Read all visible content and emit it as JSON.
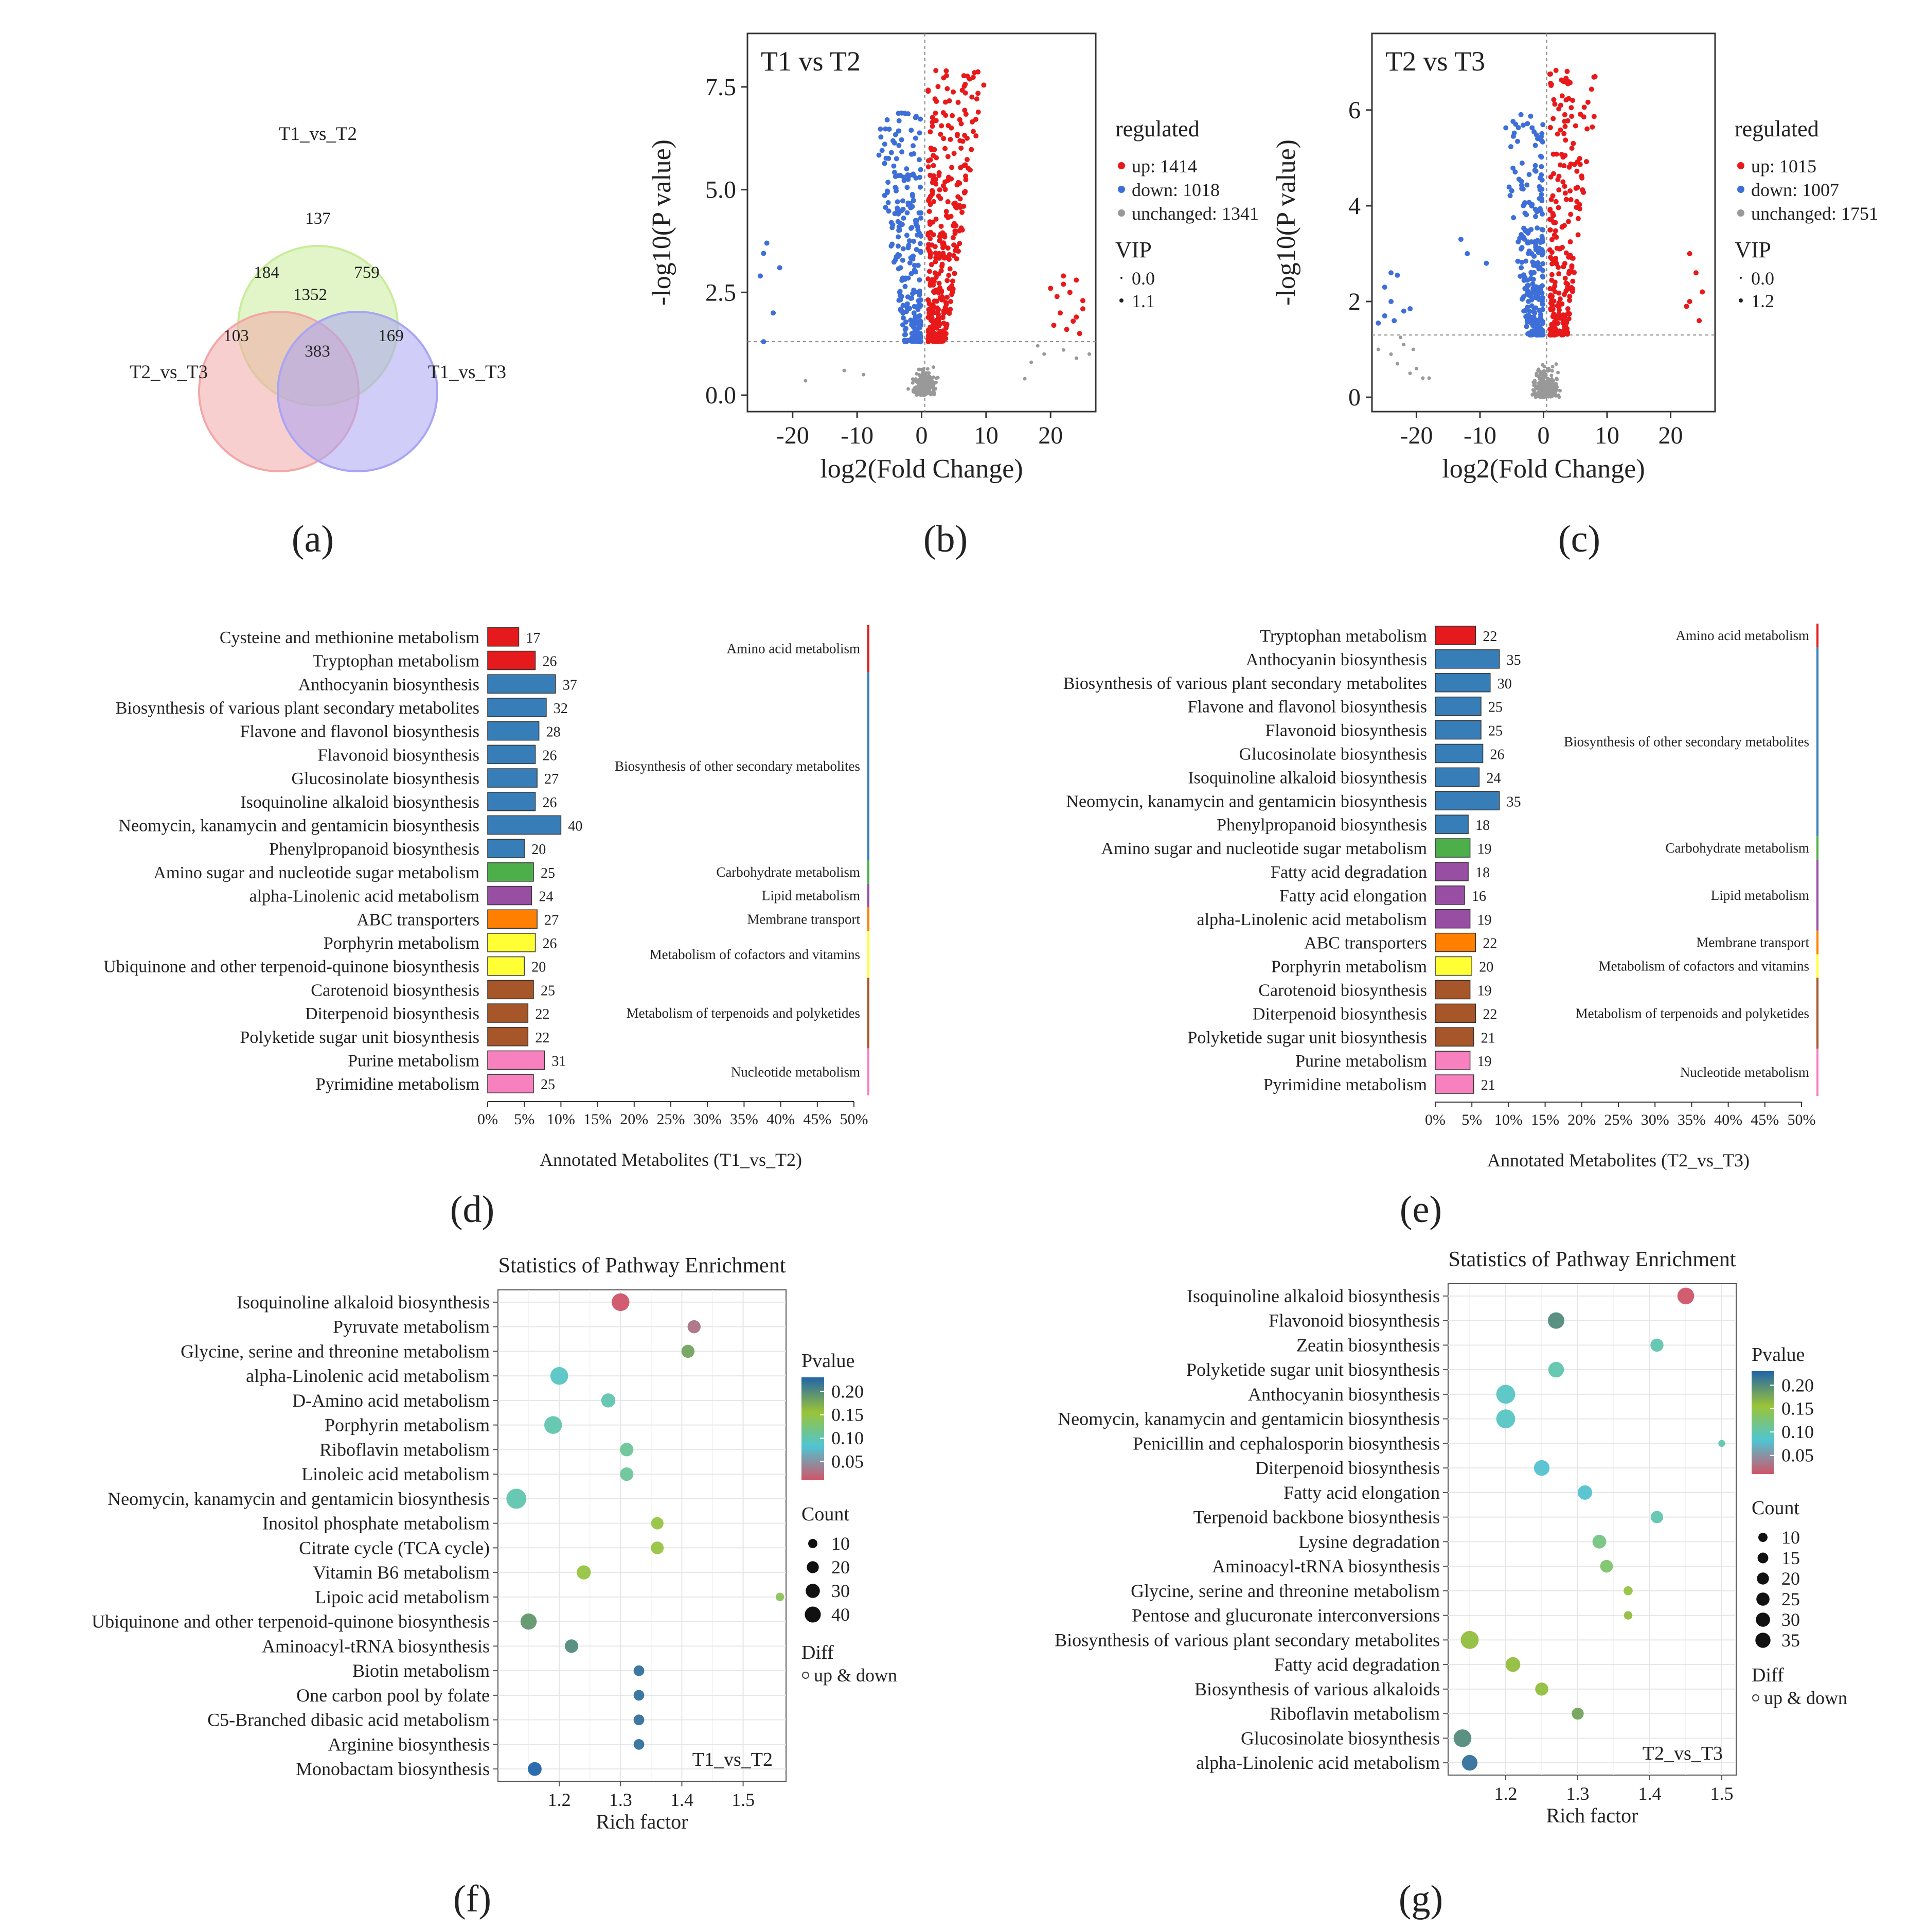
{
  "panel_labels": [
    "(a)",
    "(b)",
    "(c)",
    "(d)",
    "(e)",
    "(f)",
    "(g)"
  ],
  "chart_data": [
    {
      "panel": "(a)",
      "type": "venn",
      "sets": [
        {
          "name": "T1_vs_T2",
          "color": "#c9ec9a"
        },
        {
          "name": "T2_vs_T3",
          "color": "#f2a7a7"
        },
        {
          "name": "T1_vs_T3",
          "color": "#a9a4f3"
        }
      ],
      "regions": {
        "T1_vs_T2_only": 137,
        "T2_vs_T3_only": 103,
        "T1_vs_T3_only": 169,
        "T1_T2_and_T2_T3": 184,
        "T1_T2_and_T1_T3": 759,
        "T2_T3_and_T1_T3": 383,
        "all_three": 1352
      }
    },
    {
      "panel": "(b)",
      "type": "scatter",
      "title": "T1 vs T2",
      "xlabel": "log2(Fold Change)",
      "ylabel": "-log10(P value)",
      "xlim": [
        -27,
        27
      ],
      "ylim": [
        -0.4,
        8.8
      ],
      "xticks": [
        -20,
        -10,
        0,
        10,
        20
      ],
      "yticks": [
        "0.0",
        "2.5",
        "5.0",
        "7.5"
      ],
      "threshold_y": 1.3,
      "legend": {
        "title": "regulated",
        "items": [
          {
            "label": "up: 1414",
            "color": "#e8191a"
          },
          {
            "label": "down: 1018",
            "color": "#3e6fd8"
          },
          {
            "label": "unchanged: 1341",
            "color": "#999999"
          }
        ],
        "vip_title": "VIP",
        "vip_items": [
          "0.0",
          "1.1"
        ]
      },
      "counts": {
        "up": 1414,
        "down": 1018,
        "unchanged": 1341
      },
      "seed": 11,
      "side_points": {
        "left_down": [
          [
            -24,
            3.7
          ],
          [
            -24.5,
            3.45
          ],
          [
            -22,
            3.1
          ],
          [
            -25,
            2.9
          ],
          [
            -23,
            2.0
          ],
          [
            -24.5,
            1.3
          ]
        ],
        "left_gray": [
          [
            -18,
            0.35
          ],
          [
            -12,
            0.6
          ],
          [
            -9,
            0.5
          ]
        ],
        "right_up": [
          [
            20,
            2.6
          ],
          [
            21,
            2.4
          ],
          [
            22,
            2.7
          ],
          [
            23,
            2.5
          ],
          [
            24,
            2.8
          ],
          [
            25,
            2.3
          ],
          [
            21.5,
            2.0
          ],
          [
            23.5,
            1.8
          ],
          [
            24.5,
            1.5
          ],
          [
            20.5,
            1.7
          ],
          [
            22.5,
            1.6
          ],
          [
            25,
            2.1
          ],
          [
            22,
            2.9
          ],
          [
            24,
            1.9
          ]
        ],
        "right_gray": [
          [
            17,
            0.8
          ],
          [
            18,
            1.2
          ],
          [
            19,
            1.0
          ],
          [
            22,
            1.1
          ],
          [
            24,
            0.9
          ],
          [
            26,
            1.0
          ],
          [
            16,
            0.4
          ]
        ]
      }
    },
    {
      "panel": "(c)",
      "type": "scatter",
      "title": "T2 vs T3",
      "xlabel": "log2(Fold Change)",
      "ylabel": "-log10(P value)",
      "xlim": [
        -27,
        27
      ],
      "ylim": [
        -0.3,
        7.6
      ],
      "xticks": [
        -20,
        -10,
        0,
        10,
        20
      ],
      "yticks": [
        "0",
        "2",
        "4",
        "6"
      ],
      "threshold_y": 1.3,
      "legend": {
        "title": "regulated",
        "items": [
          {
            "label": "up: 1015",
            "color": "#e8191a"
          },
          {
            "label": "down: 1007",
            "color": "#3e6fd8"
          },
          {
            "label": "unchanged: 1751",
            "color": "#999999"
          }
        ],
        "vip_title": "VIP",
        "vip_items": [
          "0.0",
          "1.2"
        ]
      },
      "counts": {
        "up": 1015,
        "down": 1007,
        "unchanged": 1751
      },
      "seed": 23,
      "side_points": {
        "left_down": [
          [
            -24,
            2.6
          ],
          [
            -23,
            2.55
          ],
          [
            -25,
            2.3
          ],
          [
            -24,
            2.0
          ],
          [
            -22,
            1.8
          ],
          [
            -25,
            1.7
          ],
          [
            -23.5,
            1.6
          ],
          [
            -21,
            1.85
          ],
          [
            -26,
            1.55
          ],
          [
            -13,
            3.3
          ],
          [
            -9,
            2.8
          ],
          [
            -12,
            3.0
          ]
        ],
        "left_gray": [
          [
            -26,
            1.0
          ],
          [
            -24,
            0.9
          ],
          [
            -23,
            0.7
          ],
          [
            -22,
            1.1
          ],
          [
            -21,
            0.5
          ],
          [
            -20,
            0.6
          ],
          [
            -19,
            0.4
          ],
          [
            -18,
            0.4
          ],
          [
            -22.5,
            1.25
          ],
          [
            -20.5,
            1.0
          ]
        ],
        "right_up": [
          [
            23,
            3.0
          ],
          [
            24,
            2.6
          ],
          [
            25,
            2.2
          ],
          [
            23,
            2.0
          ],
          [
            24.5,
            1.6
          ],
          [
            22.5,
            1.9
          ]
        ],
        "right_gray": []
      }
    },
    {
      "panel": "(d)",
      "type": "bar",
      "orientation": "horizontal",
      "xlabel": "Annotated Metabolites (T1_vs_T2)",
      "xticks": [
        "0%",
        "5%",
        "10%",
        "15%",
        "20%",
        "25%",
        "30%",
        "35%",
        "40%",
        "45%",
        "50%"
      ],
      "xlim": [
        0,
        50
      ],
      "categories": [
        "Cysteine and methionine metabolism",
        "Tryptophan metabolism",
        "Anthocyanin biosynthesis",
        "Biosynthesis of various plant secondary metabolites",
        "Flavone and flavonol biosynthesis",
        "Flavonoid biosynthesis",
        "Glucosinolate biosynthesis",
        "Isoquinoline alkaloid biosynthesis",
        "Neomycin, kanamycin and gentamicin biosynthesis",
        "Phenylpropanoid biosynthesis",
        "Amino sugar and nucleotide sugar metabolism",
        "alpha-Linolenic acid metabolism",
        "ABC transporters",
        "Porphyrin metabolism",
        "Ubiquinone and other terpenoid-quinone biosynthesis",
        "Carotenoid biosynthesis",
        "Diterpenoid biosynthesis",
        "Polyketide sugar unit biosynthesis",
        "Purine metabolism",
        "Pyrimidine metabolism"
      ],
      "values": [
        17,
        26,
        37,
        32,
        28,
        26,
        27,
        26,
        40,
        20,
        25,
        24,
        27,
        26,
        20,
        25,
        22,
        22,
        31,
        25
      ],
      "group_index": [
        0,
        0,
        1,
        1,
        1,
        1,
        1,
        1,
        1,
        1,
        2,
        3,
        4,
        5,
        5,
        6,
        6,
        6,
        7,
        7
      ],
      "groups": [
        {
          "name": "Amino acid metabolism",
          "color": "#e41a1c"
        },
        {
          "name": "Biosynthesis of other secondary metabolites",
          "color": "#377eb8"
        },
        {
          "name": "Carbohydrate metabolism",
          "color": "#4daf4a"
        },
        {
          "name": "Lipid metabolism",
          "color": "#984ea3"
        },
        {
          "name": "Membrane transport",
          "color": "#ff7f00"
        },
        {
          "name": "Metabolism of cofactors and vitamins",
          "color": "#ffff33"
        },
        {
          "name": "Metabolism of terpenoids and polyketides",
          "color": "#a65628"
        },
        {
          "name": "Nucleotide metabolism",
          "color": "#f781bf"
        }
      ]
    },
    {
      "panel": "(e)",
      "type": "bar",
      "orientation": "horizontal",
      "xlabel": "Annotated Metabolites (T2_vs_T3)",
      "xticks": [
        "0%",
        "5%",
        "10%",
        "15%",
        "20%",
        "25%",
        "30%",
        "35%",
        "40%",
        "45%",
        "50%"
      ],
      "xlim": [
        0,
        50
      ],
      "categories": [
        "Tryptophan metabolism",
        "Anthocyanin biosynthesis",
        "Biosynthesis of various plant secondary metabolites",
        "Flavone and flavonol biosynthesis",
        "Flavonoid biosynthesis",
        "Glucosinolate biosynthesis",
        "Isoquinoline alkaloid biosynthesis",
        "Neomycin, kanamycin and gentamicin biosynthesis",
        "Phenylpropanoid biosynthesis",
        "Amino sugar and nucleotide sugar metabolism",
        "Fatty acid degradation",
        "Fatty acid elongation",
        "alpha-Linolenic acid metabolism",
        "ABC transporters",
        "Porphyrin metabolism",
        "Carotenoid biosynthesis",
        "Diterpenoid biosynthesis",
        "Polyketide sugar unit biosynthesis",
        "Purine metabolism",
        "Pyrimidine metabolism"
      ],
      "values": [
        22,
        35,
        30,
        25,
        25,
        26,
        24,
        35,
        18,
        19,
        18,
        16,
        19,
        22,
        20,
        19,
        22,
        21,
        19,
        21
      ],
      "group_index": [
        0,
        1,
        1,
        1,
        1,
        1,
        1,
        1,
        1,
        2,
        3,
        3,
        3,
        4,
        5,
        6,
        6,
        6,
        7,
        7
      ],
      "groups": [
        {
          "name": "Amino acid metabolism",
          "color": "#e41a1c"
        },
        {
          "name": "Biosynthesis of other secondary metabolites",
          "color": "#377eb8"
        },
        {
          "name": "Carbohydrate metabolism",
          "color": "#4daf4a"
        },
        {
          "name": "Lipid metabolism",
          "color": "#984ea3"
        },
        {
          "name": "Membrane transport",
          "color": "#ff7f00"
        },
        {
          "name": "Metabolism of cofactors and vitamins",
          "color": "#ffff33"
        },
        {
          "name": "Metabolism of terpenoids and polyketides",
          "color": "#a65628"
        },
        {
          "name": "Nucleotide metabolism",
          "color": "#f781bf"
        }
      ]
    },
    {
      "panel": "(f)",
      "type": "scatter",
      "subtype": "bubble",
      "title": "Statistics of Pathway Enrichment",
      "xlabel": "Rich factor",
      "xlim": [
        1.1,
        1.57
      ],
      "xticks": [
        "1.2",
        "1.3",
        "1.4",
        "1.5"
      ],
      "annotation": "T1_vs_T2",
      "legend": {
        "color_title": "Pvalue",
        "color_ticks": [
          "0.20",
          "0.15",
          "0.10",
          "0.05"
        ],
        "color_range": [
          0.01,
          0.23
        ],
        "size_title": "Count",
        "size_values": [
          10,
          20,
          30,
          40
        ],
        "size_labels": [
          "10",
          "20",
          "30",
          "40"
        ],
        "diff_title": "Diff",
        "diff_label": "up & down"
      },
      "categories": [
        "Isoquinoline alkaloid biosynthesis",
        "Pyruvate metabolism",
        "Glycine, serine and threonine metabolism",
        "alpha-Linolenic acid metabolism",
        "D-Amino acid metabolism",
        "Porphyrin metabolism",
        "Riboflavin metabolism",
        "Linoleic acid metabolism",
        "Neomycin, kanamycin and gentamicin biosynthesis",
        "Inositol phosphate metabolism",
        "Citrate cycle (TCA cycle)",
        "Vitamin B6 metabolism",
        "Lipoic acid metabolism",
        "Ubiquinone and other terpenoid-quinone biosynthesis",
        "Aminoacyl-tRNA biosynthesis",
        "Biotin metabolism",
        "One carbon pool by folate",
        "C5-Branched dibasic acid metabolism",
        "Arginine biosynthesis",
        "Monobactam biosynthesis"
      ],
      "x": [
        1.3,
        1.42,
        1.41,
        1.2,
        1.28,
        1.19,
        1.31,
        1.31,
        1.13,
        1.36,
        1.36,
        1.24,
        1.56,
        1.15,
        1.22,
        1.33,
        1.33,
        1.33,
        1.33,
        1.16
      ],
      "pvalue": [
        0.01,
        0.03,
        0.18,
        0.09,
        0.1,
        0.1,
        0.11,
        0.11,
        0.1,
        0.15,
        0.15,
        0.15,
        0.14,
        0.19,
        0.2,
        0.22,
        0.22,
        0.22,
        0.22,
        0.23
      ],
      "count": [
        30,
        14,
        14,
        30,
        17,
        30,
        15,
        15,
        40,
        12,
        13,
        17,
        4,
        24,
        15,
        8,
        8,
        8,
        8,
        16
      ]
    },
    {
      "panel": "(g)",
      "type": "scatter",
      "subtype": "bubble",
      "title": "Statistics of Pathway Enrichment",
      "xlabel": "Rich factor",
      "xlim": [
        1.12,
        1.52
      ],
      "xticks": [
        "1.2",
        "1.3",
        "1.4",
        "1.5"
      ],
      "annotation": "T2_vs_T3",
      "legend": {
        "color_title": "Pvalue",
        "color_ticks": [
          "0.20",
          "0.15",
          "0.10",
          "0.05"
        ],
        "color_range": [
          0.01,
          0.23
        ],
        "size_title": "Count",
        "size_values": [
          10,
          15,
          20,
          25,
          30,
          35
        ],
        "size_labels": [
          "10",
          "15",
          "20",
          "25",
          "30",
          "35"
        ],
        "diff_title": "Diff",
        "diff_label": "up & down"
      },
      "categories": [
        "Isoquinoline alkaloid biosynthesis",
        "Flavonoid biosynthesis",
        "Zeatin biosynthesis",
        "Polyketide sugar unit biosynthesis",
        "Anthocyanin biosynthesis",
        "Neomycin, kanamycin and gentamicin biosynthesis",
        "Penicillin and cephalosporin biosynthesis",
        "Diterpenoid biosynthesis",
        "Fatty acid elongation",
        "Terpenoid backbone biosynthesis",
        "Lysine degradation",
        "Aminoacyl-tRNA biosynthesis",
        "Glycine, serine and threonine metabolism",
        "Pentose and glucuronate interconversions",
        "Biosynthesis of various plant secondary metabolites",
        "Fatty acid degradation",
        "Biosynthesis of various alkaloids",
        "Riboflavin metabolism",
        "Glucosinolate biosynthesis",
        "alpha-Linolenic acid metabolism"
      ],
      "x": [
        1.45,
        1.27,
        1.41,
        1.27,
        1.2,
        1.2,
        1.5,
        1.25,
        1.31,
        1.41,
        1.33,
        1.34,
        1.37,
        1.37,
        1.15,
        1.21,
        1.25,
        1.3,
        1.14,
        1.15
      ],
      "pvalue": [
        0.01,
        0.2,
        0.1,
        0.1,
        0.09,
        0.09,
        0.1,
        0.08,
        0.08,
        0.1,
        0.12,
        0.13,
        0.15,
        0.16,
        0.16,
        0.16,
        0.16,
        0.18,
        0.2,
        0.22
      ],
      "count": [
        26,
        25,
        14,
        22,
        35,
        35,
        2,
        22,
        18,
        12,
        16,
        13,
        5,
        4,
        31,
        19,
        14,
        11,
        30,
        22
      ]
    }
  ]
}
